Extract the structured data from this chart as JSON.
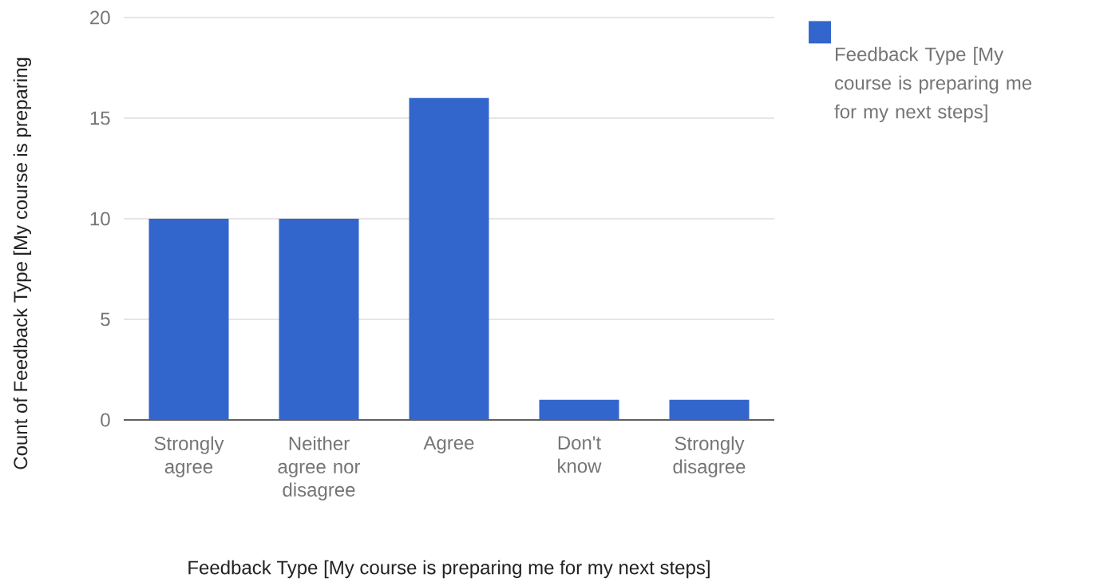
{
  "chart_data": {
    "type": "bar",
    "categories": [
      "Strongly agree",
      "Neither agree nor disagree",
      "Agree",
      "Don't know",
      "Strongly disagree"
    ],
    "series": [
      {
        "name": "Feedback Type [My course is preparing me for my next steps]",
        "color": "#3366cc",
        "values": [
          10,
          10,
          16,
          1,
          1
        ]
      }
    ],
    "xlabel": "Feedback Type [My course is preparing me for my next steps]",
    "ylabel": "Count of Feedback Type [My course is preparing",
    "ylim": [
      0,
      20
    ],
    "yticks": [
      0,
      5,
      10,
      15,
      20
    ],
    "grid": "y",
    "legend": "top right"
  }
}
